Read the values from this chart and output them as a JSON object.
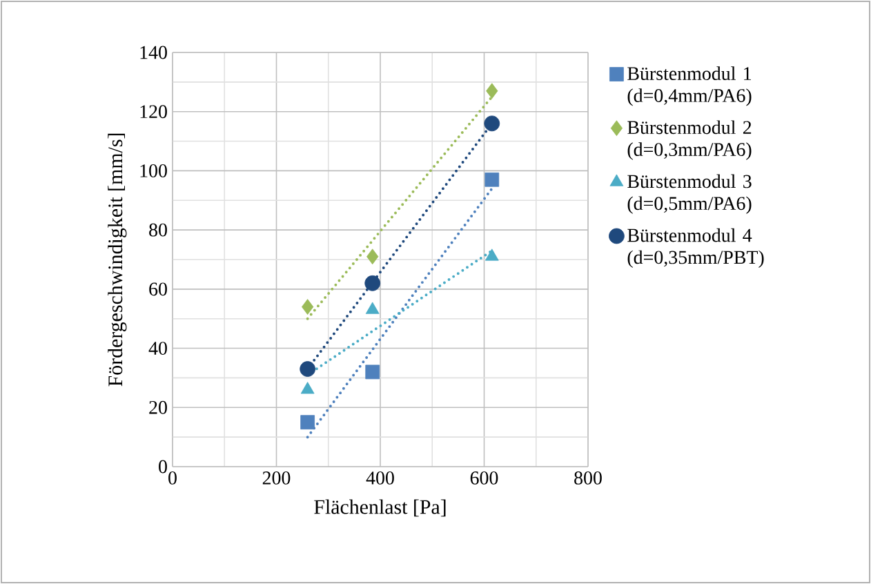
{
  "chart_data": {
    "type": "scatter",
    "xlabel": "Flächenlast [Pa]",
    "ylabel": "Fördergeschwindigkeit [mm/s]",
    "xlim": [
      0,
      800
    ],
    "xticks": [
      0,
      200,
      400,
      600,
      800
    ],
    "ylim": [
      0,
      140
    ],
    "yticks": [
      0,
      20,
      40,
      60,
      80,
      100,
      120,
      140
    ],
    "grid": true,
    "legend": "right",
    "series": [
      {
        "name": "Bürstenmodul 1 (d=0,4mm/PA6)",
        "color": "#4f81bd",
        "marker": "square",
        "x": [
          260,
          385,
          615
        ],
        "values": [
          15,
          32,
          97
        ]
      },
      {
        "name": "Bürstenmodul 2 (d=0,3mm/PA6)",
        "color": "#9bbb59",
        "marker": "diamond",
        "x": [
          260,
          385,
          615
        ],
        "values": [
          54,
          71,
          127
        ]
      },
      {
        "name": "Bürstenmodul 3 (d=0,5mm/PA6)",
        "color": "#4bacc6",
        "marker": "triangle",
        "x": [
          260,
          385,
          615
        ],
        "values": [
          26,
          53,
          71
        ]
      },
      {
        "name": "Bürstenmodul 4 (d=0,35mm/PBT)",
        "color": "#1f497d",
        "marker": "circle",
        "x": [
          260,
          385,
          615
        ],
        "values": [
          33,
          62,
          116
        ]
      },
      {
        "type": "line",
        "color": "#4f81bd",
        "line_style": "dotted",
        "marker": "none",
        "x": [
          260,
          615
        ],
        "values": [
          10,
          94
        ]
      },
      {
        "type": "line",
        "color": "#9bbb59",
        "line_style": "dotted",
        "marker": "none",
        "x": [
          260,
          615
        ],
        "values": [
          50,
          125
        ]
      },
      {
        "type": "line",
        "color": "#4bacc6",
        "line_style": "dotted",
        "marker": "none",
        "x": [
          260,
          615
        ],
        "values": [
          31,
          73
        ]
      },
      {
        "type": "line",
        "color": "#1f497d",
        "line_style": "dotted",
        "marker": "none",
        "x": [
          260,
          615
        ],
        "values": [
          33,
          116
        ]
      }
    ]
  }
}
